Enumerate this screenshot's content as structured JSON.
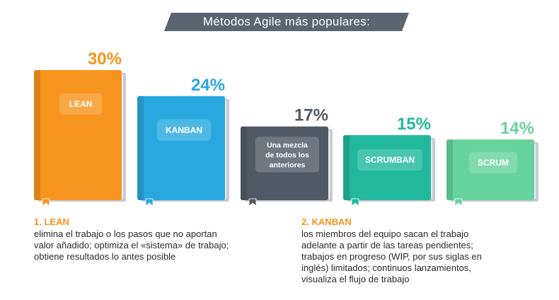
{
  "title": "Métodos Agile más populares:",
  "chart_data": {
    "type": "bar",
    "title": "Métodos Agile más populares:",
    "categories": [
      "LEAN",
      "KANBAN",
      "Una mezcla de todos los anteriores",
      "SCRUMBAN",
      "SCRUM"
    ],
    "label_lines": [
      [
        "LEAN"
      ],
      [
        "KANBAN"
      ],
      [
        "Una mezcla",
        "de todos los",
        "anteriores"
      ],
      [
        "SCRUMBAN"
      ],
      [
        "SCRUM"
      ]
    ],
    "values": [
      30,
      24,
      17,
      15,
      14
    ],
    "value_labels": [
      "30%",
      "24%",
      "17%",
      "15%",
      "14%"
    ],
    "colors": [
      "#f7941d",
      "#29a8e0",
      "#515a64",
      "#22b89e",
      "#66d39c"
    ],
    "xlabel": "",
    "ylabel": "",
    "grid": false
  },
  "descriptions": [
    {
      "heading": "1. LEAN",
      "lines": [
        "elimina el trabajo o los pasos que no aportan",
        "valor añadido; optimiza el «sistema» de trabajo;",
        "obtiene resultados lo antes posible"
      ]
    },
    {
      "heading": "2. KANBAN",
      "lines": [
        "los miembros del equipo sacan el trabajo",
        "adelante a partir de las tareas pendientes;",
        "trabajos en progreso (WIP, por sus siglas en",
        "inglés) limitados; continuos lanzamientos,",
        "visualiza el flujo de trabajo"
      ]
    }
  ],
  "colors": {
    "title_banner": "#5a6570",
    "heading": "#f7941d",
    "text": "#2b2b2b",
    "pages": "#c8ccd2"
  }
}
